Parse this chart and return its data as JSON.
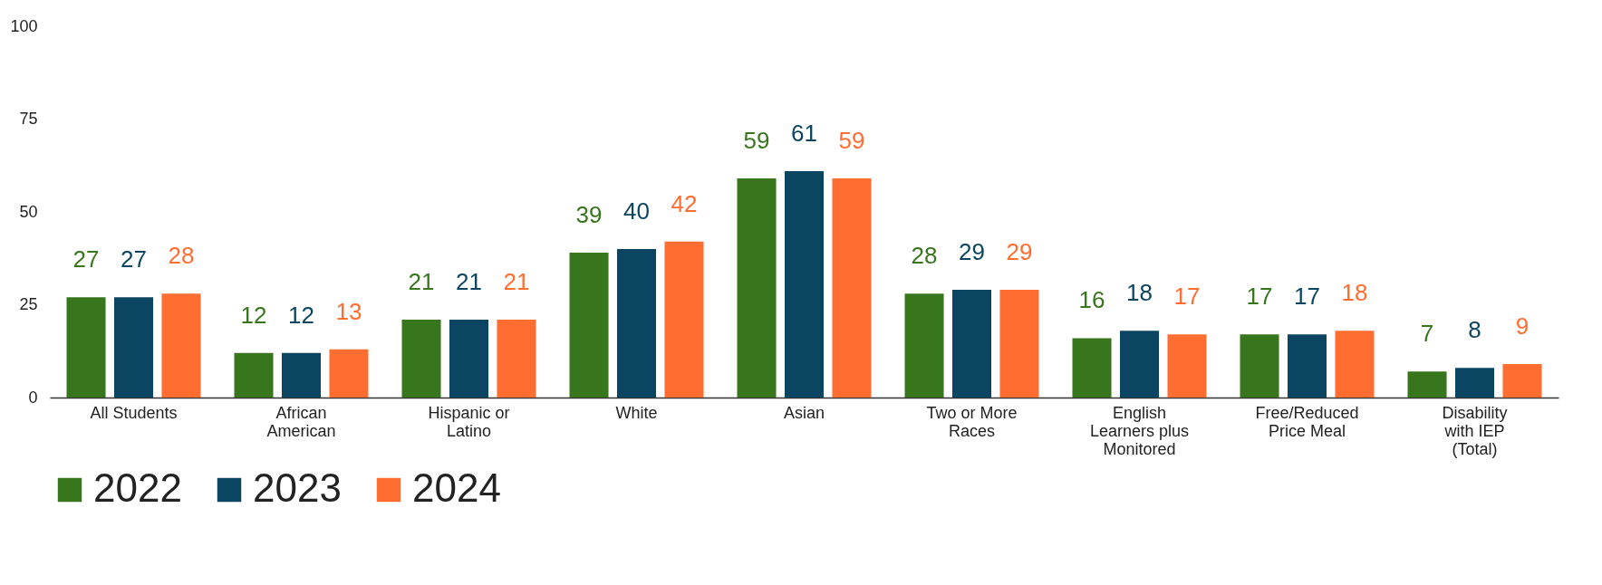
{
  "chart_data": {
    "type": "bar",
    "categories": [
      "All Students",
      "African American",
      "Hispanic or Latino",
      "White",
      "Asian",
      "Two or More Races",
      "English Learners plus Monitored",
      "Free/Reduced Price Meal",
      "Disability with IEP (Total)"
    ],
    "series": [
      {
        "name": "2022",
        "color": "#38761d",
        "values": [
          27,
          12,
          21,
          39,
          59,
          28,
          16,
          17,
          7
        ]
      },
      {
        "name": "2023",
        "color": "#0b4561",
        "values": [
          27,
          12,
          21,
          40,
          61,
          29,
          18,
          17,
          8
        ]
      },
      {
        "name": "2024",
        "color": "#ff6d31",
        "values": [
          28,
          13,
          21,
          42,
          59,
          29,
          17,
          18,
          9
        ]
      }
    ],
    "ylim": [
      0,
      100
    ],
    "yticks": [
      0,
      25,
      50,
      75,
      100
    ],
    "grid": false,
    "legend": "bottom",
    "data_labels": true
  }
}
